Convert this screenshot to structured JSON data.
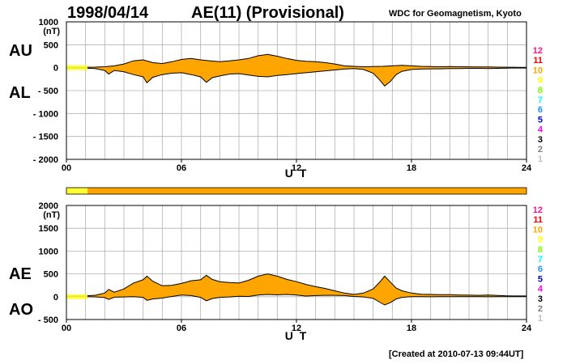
{
  "header": {
    "date": "1998/04/14",
    "index_title": "AE(11) (Provisional)",
    "source": "WDC for Geomagnetism, Kyoto"
  },
  "footer": {
    "created": "[Created at 2010-07-13 09:44UT]"
  },
  "colors": {
    "fill": "#FFA500",
    "grid": "#b0b0b0",
    "line": "#000000",
    "qual_start": "#FFFF33"
  },
  "legend": {
    "numbers": [
      "12",
      "11",
      "10",
      "9",
      "8",
      "7",
      "6",
      "5",
      "4",
      "3",
      "2",
      "1"
    ],
    "colors": [
      "#FF1493",
      "#FF0000",
      "#FFA500",
      "#FFFF00",
      "#7CFC00",
      "#00FFFF",
      "#1E90FF",
      "#0000CD",
      "#FF00FF",
      "#000000",
      "#808080",
      "#C0C0C0"
    ]
  },
  "quality_bar": {
    "segments": [
      {
        "from": 0,
        "to": 1.1,
        "color": "#FFFF33"
      },
      {
        "from": 1.1,
        "to": 24,
        "color": "#FFA500"
      }
    ]
  },
  "chart_data": [
    {
      "type": "area",
      "xlabel": "U T",
      "ylabel": "(nT)",
      "xlim": [
        0,
        24
      ],
      "ylim": [
        -2000,
        1000
      ],
      "xticks": [
        "00",
        "06",
        "12",
        "18",
        "24"
      ],
      "yticks": [
        "1000",
        "500",
        "0",
        "- 500",
        "- 1000",
        "- 1500",
        "- 2000"
      ],
      "grid": true,
      "series": [
        {
          "name": "AU",
          "x": [
            0,
            0.5,
            1,
            1.5,
            2,
            2.5,
            3,
            3.5,
            4,
            4.5,
            5,
            5.5,
            6,
            6.5,
            7,
            7.5,
            8,
            8.5,
            9,
            9.5,
            10,
            10.5,
            11,
            11.5,
            12,
            12.5,
            13,
            13.5,
            14,
            14.5,
            15,
            15.5,
            16,
            16.5,
            17,
            17.5,
            18,
            18.5,
            19,
            19.5,
            20,
            20.5,
            21,
            21.5,
            22,
            22.5,
            23,
            23.5,
            24
          ],
          "values": [
            5,
            8,
            10,
            12,
            20,
            40,
            80,
            150,
            170,
            110,
            90,
            130,
            180,
            200,
            170,
            150,
            130,
            150,
            170,
            200,
            260,
            290,
            250,
            200,
            160,
            140,
            130,
            110,
            80,
            40,
            30,
            20,
            25,
            30,
            40,
            50,
            40,
            30,
            25,
            20,
            25,
            20,
            18,
            15,
            15,
            12,
            10,
            8,
            8
          ]
        },
        {
          "name": "AL",
          "x": [
            0,
            0.5,
            1,
            1.5,
            2,
            2.2,
            2.5,
            3,
            3.5,
            4,
            4.2,
            4.5,
            5,
            5.5,
            6,
            6.5,
            7,
            7.3,
            7.6,
            8,
            8.5,
            9,
            9.5,
            10,
            10.5,
            11,
            11.5,
            12,
            12.5,
            13,
            13.5,
            14,
            14.5,
            15,
            15.5,
            16,
            16.3,
            16.6,
            16.9,
            17.2,
            17.5,
            18,
            18.5,
            19,
            19.5,
            20,
            20.5,
            21,
            21.5,
            22,
            22.5,
            23,
            23.5,
            24
          ],
          "values": [
            -5,
            -8,
            -10,
            -20,
            -60,
            -140,
            -60,
            -90,
            -150,
            -200,
            -330,
            -210,
            -150,
            -120,
            -110,
            -150,
            -200,
            -320,
            -220,
            -180,
            -140,
            -130,
            -160,
            -190,
            -200,
            -170,
            -150,
            -130,
            -110,
            -90,
            -70,
            -50,
            -30,
            -20,
            -40,
            -120,
            -250,
            -400,
            -300,
            -150,
            -80,
            -40,
            -30,
            -25,
            -25,
            -20,
            -18,
            -15,
            -15,
            -20,
            -15,
            -10,
            -8,
            -8
          ]
        }
      ],
      "side_labels": {
        "upper": "AU",
        "lower": "AL"
      }
    },
    {
      "type": "area",
      "xlabel": "U T",
      "ylabel": "(nT)",
      "xlim": [
        0,
        24
      ],
      "ylim": [
        -500,
        2000
      ],
      "xticks": [
        "00",
        "06",
        "12",
        "18",
        "24"
      ],
      "yticks": [
        "2000",
        "1500",
        "1000",
        "500",
        "0",
        "- 500"
      ],
      "grid": true,
      "series": [
        {
          "name": "AE",
          "x": [
            0,
            0.5,
            1,
            1.5,
            2,
            2.2,
            2.5,
            3,
            3.5,
            4,
            4.2,
            4.5,
            5,
            5.5,
            6,
            6.5,
            7,
            7.3,
            7.6,
            8,
            8.5,
            9,
            9.5,
            10,
            10.5,
            11,
            11.5,
            12,
            12.5,
            13,
            13.5,
            14,
            14.5,
            15,
            15.5,
            16,
            16.3,
            16.6,
            16.9,
            17.2,
            17.5,
            18,
            18.5,
            19,
            19.5,
            20,
            20.5,
            21,
            21.5,
            22,
            22.5,
            23,
            23.5,
            24
          ],
          "values": [
            10,
            16,
            20,
            32,
            80,
            160,
            100,
            170,
            300,
            370,
            450,
            340,
            240,
            250,
            290,
            350,
            370,
            470,
            380,
            330,
            310,
            300,
            360,
            450,
            500,
            450,
            380,
            330,
            270,
            220,
            180,
            130,
            80,
            50,
            80,
            170,
            300,
            450,
            320,
            190,
            130,
            80,
            55,
            50,
            45,
            45,
            38,
            33,
            30,
            35,
            27,
            20,
            16,
            16
          ]
        },
        {
          "name": "AO",
          "x": [
            0,
            0.5,
            1,
            1.5,
            2,
            2.2,
            2.5,
            3,
            3.5,
            4,
            4.2,
            4.5,
            5,
            5.5,
            6,
            6.5,
            7,
            7.3,
            7.6,
            8,
            8.5,
            9,
            9.5,
            10,
            10.5,
            11,
            11.5,
            12,
            12.5,
            13,
            13.5,
            14,
            14.5,
            15,
            15.5,
            16,
            16.3,
            16.6,
            16.9,
            17.2,
            17.5,
            18,
            18.5,
            19,
            19.5,
            20,
            20.5,
            21,
            21.5,
            22,
            22.5,
            23,
            23.5,
            24
          ],
          "values": [
            0,
            0,
            0,
            -4,
            -20,
            -60,
            -10,
            -5,
            0,
            -15,
            -80,
            -50,
            -30,
            5,
            35,
            25,
            -15,
            -90,
            -40,
            -15,
            -5,
            10,
            5,
            35,
            50,
            40,
            50,
            35,
            15,
            25,
            30,
            30,
            25,
            5,
            -5,
            -35,
            -110,
            -180,
            -130,
            -50,
            -15,
            0,
            0,
            -2,
            0,
            2,
            0,
            2,
            0,
            -2,
            0,
            0,
            0,
            0
          ]
        }
      ],
      "side_labels": {
        "upper": "AE",
        "lower": "AO"
      }
    }
  ]
}
